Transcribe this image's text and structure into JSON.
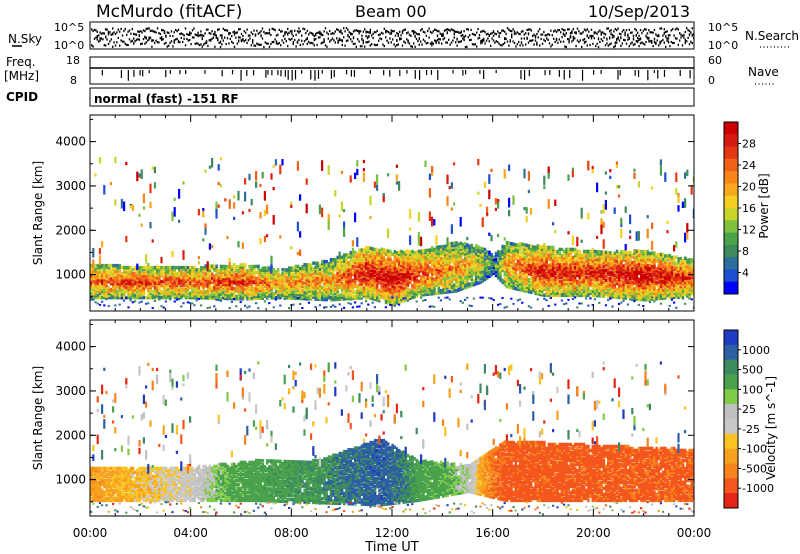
{
  "header": {
    "station": "McMurdo (fitACF)",
    "beam": "Beam 00",
    "date": "10/Sep/2013"
  },
  "top_panels": {
    "nsky_label": "N.Sky",
    "nsky_ticks": [
      "10^5",
      "10^0"
    ],
    "nsearch_label": "N.Search",
    "nsearch_ticks": [
      "10^5",
      "10^0"
    ],
    "freq_label_1": "Freq.",
    "freq_label_2": "[MHz]",
    "freq_ticks": [
      "18",
      "8"
    ],
    "nave_label": "Nave",
    "nave_ticks": [
      "60",
      "0"
    ],
    "cpid_label": "CPID",
    "cpid_text": "normal (fast) -151 RF"
  },
  "chart_data": [
    {
      "type": "heatmap",
      "name": "power",
      "xlabel": "Time UT",
      "ylabel": "Slant Range [km]",
      "xlim": [
        "00:00",
        "24:00"
      ],
      "ylim": [
        180,
        4600
      ],
      "ytick_values": [
        1000,
        2000,
        3000,
        4000
      ],
      "ytick_labels": [
        "1000",
        "2000",
        "3000",
        "4000"
      ],
      "colorbar": {
        "label": "Power [dB]",
        "range": [
          0,
          32
        ],
        "tick_values": [
          4,
          8,
          12,
          16,
          20,
          24,
          28
        ],
        "tick_labels": [
          "4",
          "8",
          "12",
          "16",
          "20",
          "24",
          "28"
        ],
        "colors": [
          "#0000ff",
          "#1d4fd0",
          "#2f6e9c",
          "#3f8a5c",
          "#4aa34b",
          "#7ec040",
          "#c8d42a",
          "#f5d020",
          "#f7a81e",
          "#f6861a",
          "#ef6218",
          "#e33a15",
          "#d81b12",
          "#cc0000"
        ]
      },
      "echo_band": [
        {
          "t": 0,
          "lo": 450,
          "hi": 1200,
          "level": 0.7
        },
        {
          "t": 2,
          "lo": 450,
          "hi": 1150,
          "level": 0.75
        },
        {
          "t": 4,
          "lo": 450,
          "hi": 1150,
          "level": 0.7
        },
        {
          "t": 6,
          "lo": 420,
          "hi": 1200,
          "level": 0.75
        },
        {
          "t": 7.5,
          "lo": 450,
          "hi": 1100,
          "level": 0.6
        },
        {
          "t": 9.5,
          "lo": 400,
          "hi": 1300,
          "level": 0.6
        },
        {
          "t": 11,
          "lo": 450,
          "hi": 1600,
          "level": 0.85
        },
        {
          "t": 12,
          "lo": 300,
          "hi": 1500,
          "level": 0.9
        },
        {
          "t": 13,
          "lo": 500,
          "hi": 1500,
          "level": 0.75
        },
        {
          "t": 14.5,
          "lo": 600,
          "hi": 1700,
          "level": 0.6
        },
        {
          "t": 15.5,
          "lo": 800,
          "hi": 1600,
          "level": 0.5
        },
        {
          "t": 16,
          "lo": 1000,
          "hi": 1400,
          "level": 0.2
        },
        {
          "t": 16.5,
          "lo": 700,
          "hi": 1700,
          "level": 0.6
        },
        {
          "t": 18,
          "lo": 500,
          "hi": 1600,
          "level": 0.8
        },
        {
          "t": 20,
          "lo": 500,
          "hi": 1500,
          "level": 0.8
        },
        {
          "t": 22,
          "lo": 400,
          "hi": 1500,
          "level": 0.9
        },
        {
          "t": 24,
          "lo": 500,
          "hi": 1300,
          "level": 0.75
        }
      ]
    },
    {
      "type": "heatmap",
      "name": "velocity",
      "xlabel": "Time UT",
      "ylabel": "Slant Range [km]",
      "xlim": [
        "00:00",
        "24:00"
      ],
      "ylim": [
        180,
        4600
      ],
      "ytick_values": [
        1000,
        2000,
        3000,
        4000
      ],
      "ytick_labels": [
        "1000",
        "2000",
        "3000",
        "4000"
      ],
      "colorbar": {
        "label": "Velocity [m s^-1]",
        "tick_values": [
          -1000,
          -500,
          -100,
          -25,
          25,
          100,
          500,
          1000
        ],
        "tick_labels": [
          "-1000",
          "-500",
          "-100",
          "-25",
          "25",
          "100",
          "500",
          "1000"
        ],
        "colors": [
          "#e52515",
          "#f4571d",
          "#f6841c",
          "#f7a21f",
          "#f9c323",
          "#c8c8c8",
          "#c0c0c0",
          "#7fcc4a",
          "#4aa24c",
          "#3e8a60",
          "#2d5fa3",
          "#1f3bc4"
        ]
      },
      "echo_band": [
        {
          "t": 0,
          "lo": 500,
          "hi": 1250,
          "v": -80
        },
        {
          "t": 4,
          "lo": 500,
          "hi": 1250,
          "v": 0
        },
        {
          "t": 6.5,
          "lo": 500,
          "hi": 1400,
          "v": 200
        },
        {
          "t": 9,
          "lo": 450,
          "hi": 1400,
          "v": 300
        },
        {
          "t": 11.5,
          "lo": 400,
          "hi": 1900,
          "v": 800
        },
        {
          "t": 13,
          "lo": 500,
          "hi": 1400,
          "v": 200
        },
        {
          "t": 15,
          "lo": 700,
          "hi": 1300,
          "v": 50
        },
        {
          "t": 16.5,
          "lo": 500,
          "hi": 1850,
          "v": -300
        },
        {
          "t": 20,
          "lo": 500,
          "hi": 1750,
          "v": -300
        },
        {
          "t": 24,
          "lo": 500,
          "hi": 1650,
          "v": -250
        }
      ]
    }
  ],
  "xaxis": {
    "tick_labels": [
      "00:00",
      "04:00",
      "08:00",
      "12:00",
      "16:00",
      "20:00",
      "00:00"
    ],
    "label": "Time UT"
  }
}
